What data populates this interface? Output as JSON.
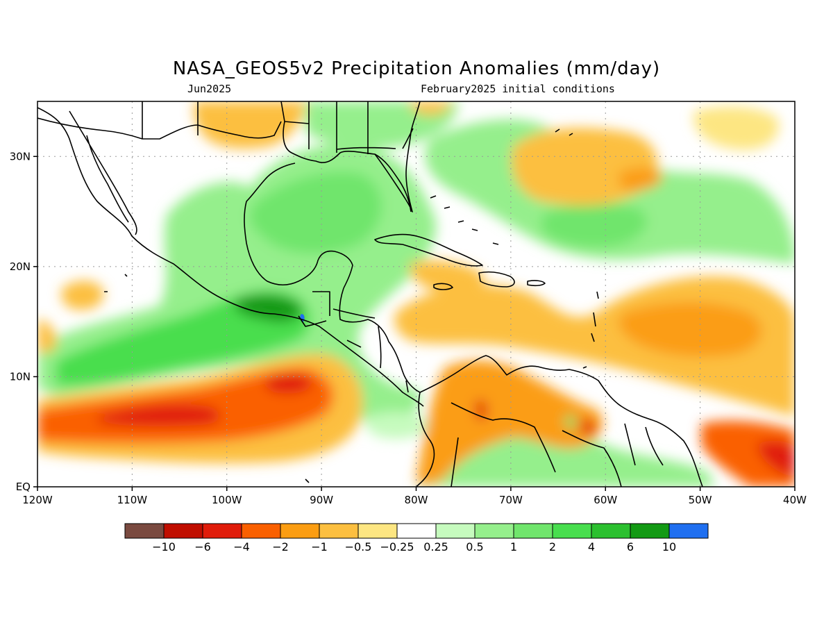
{
  "title": "NASA_GEOS5v2 Precipitation Anomalies (mm/day)",
  "subtitle_left": "Jun2025",
  "subtitle_right": "February2025 initial conditions",
  "map": {
    "lon_range": [
      -120,
      -40
    ],
    "lat_range": [
      0,
      35
    ],
    "x_ticks": [
      {
        "lon": -120,
        "label": "120W"
      },
      {
        "lon": -110,
        "label": "110W"
      },
      {
        "lon": -100,
        "label": "100W"
      },
      {
        "lon": -90,
        "label": "90W"
      },
      {
        "lon": -80,
        "label": "80W"
      },
      {
        "lon": -70,
        "label": "70W"
      },
      {
        "lon": -60,
        "label": "60W"
      },
      {
        "lon": -50,
        "label": "50W"
      },
      {
        "lon": -40,
        "label": "40W"
      }
    ],
    "y_ticks": [
      {
        "lat": 0,
        "label": "EQ"
      },
      {
        "lat": 10,
        "label": "10N"
      },
      {
        "lat": 20,
        "label": "20N"
      },
      {
        "lat": 30,
        "label": "30N"
      }
    ],
    "grid": "dotted"
  },
  "colorbar": {
    "colors": [
      "#7a4a40",
      "#c00e00",
      "#e01c0a",
      "#fa6000",
      "#fb9d12",
      "#fcbf40",
      "#fde682",
      "#ffffff",
      "#c6fbbe",
      "#95ef8c",
      "#70e56c",
      "#48de4e",
      "#2bc02f",
      "#139a14",
      "#1f6ff0"
    ],
    "labels": [
      "−10",
      "−6",
      "−4",
      "−2",
      "−1",
      "−0.5",
      "−0.25",
      "0.25",
      "0.5",
      "1",
      "2",
      "4",
      "6",
      "10"
    ]
  },
  "colors": {
    "dry_extreme": "#7a4a40",
    "wet_extreme": "#1f6ff0"
  }
}
